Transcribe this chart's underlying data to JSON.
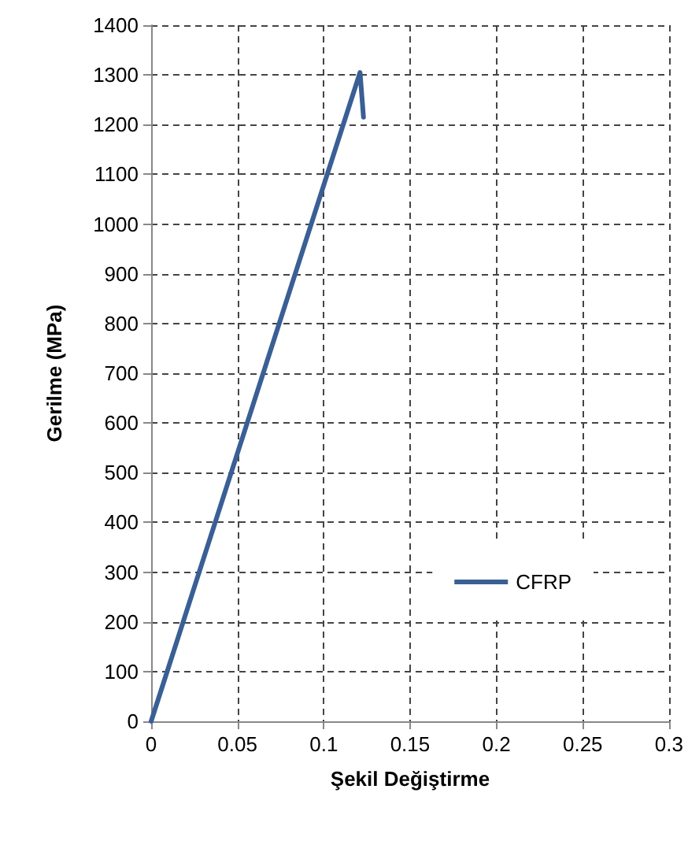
{
  "chart_data": {
    "type": "line",
    "xlabel": "Şekil Değiştirme",
    "ylabel": "Gerilme (MPa)",
    "series": [
      {
        "name": "CFRP",
        "color": "#3a5f95",
        "x": [
          0,
          0.121,
          0.123
        ],
        "values": [
          0,
          1305,
          1215
        ]
      }
    ],
    "xlim": [
      0,
      0.3
    ],
    "xticks": [
      0,
      0.05,
      0.1,
      0.15,
      0.2,
      0.25,
      0.3
    ],
    "ylim": [
      0,
      1400
    ],
    "yticks": [
      0,
      100,
      200,
      300,
      400,
      500,
      600,
      700,
      800,
      900,
      1000,
      1100,
      1200,
      1300,
      1400
    ],
    "grid": true,
    "legend": "right",
    "marker": "none",
    "line_style": "solid"
  }
}
